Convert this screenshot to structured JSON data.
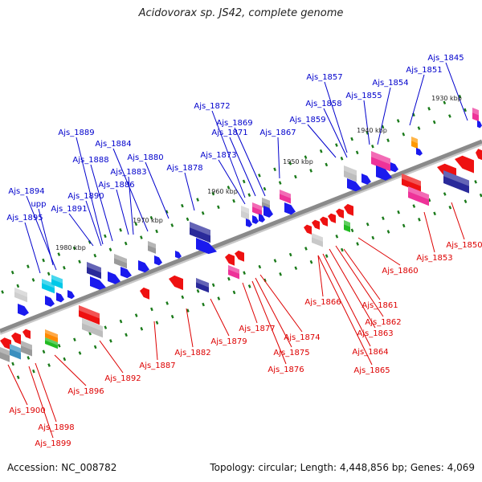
{
  "title": "Acidovorax sp. JS42, complete genome",
  "footer": {
    "accession": "Accession: NC_008782",
    "topology": "Topology: circular; Length: 4,448,856 bp; Genes: 4,069"
  },
  "colors": {
    "top_label": "#0000cc",
    "bottom_label": "#dd0000",
    "backbone": "#8a8a8a",
    "tick": "#1a7a1a"
  },
  "tick_marks": [
    "1930 kbp",
    "1940 kbp",
    "1950 kbp",
    "1960 kbp",
    "1970 kbp",
    "1980 kbp"
  ],
  "top_genes": [
    "Ajs_1845",
    "Ajs_1851",
    "Ajs_1854",
    "Ajs_1857",
    "Ajs_1855",
    "Ajs_1858",
    "Ajs_1859",
    "Ajs_1867",
    "Ajs_1869",
    "Ajs_1871",
    "Ajs_1872",
    "Ajs_1873",
    "Ajs_1878",
    "Ajs_1880",
    "Ajs_1884",
    "Ajs_1883",
    "Ajs_1888",
    "Ajs_1889",
    "Ajs_1886",
    "Ajs_1890",
    "Ajs_1891",
    "Ajs_1894",
    "upp",
    "Ajs_1895"
  ],
  "bottom_genes": [
    "Ajs_1850",
    "Ajs_1853",
    "Ajs_1860",
    "Ajs_1861",
    "Ajs_1862",
    "Ajs_1863",
    "Ajs_1864",
    "Ajs_1865",
    "Ajs_1866",
    "Ajs_1874",
    "Ajs_1875",
    "Ajs_1876",
    "Ajs_1877",
    "Ajs_1879",
    "Ajs_1882",
    "Ajs_1887",
    "Ajs_1892",
    "Ajs_1896",
    "Ajs_1898",
    "Ajs_1899",
    "Ajs_1900"
  ]
}
